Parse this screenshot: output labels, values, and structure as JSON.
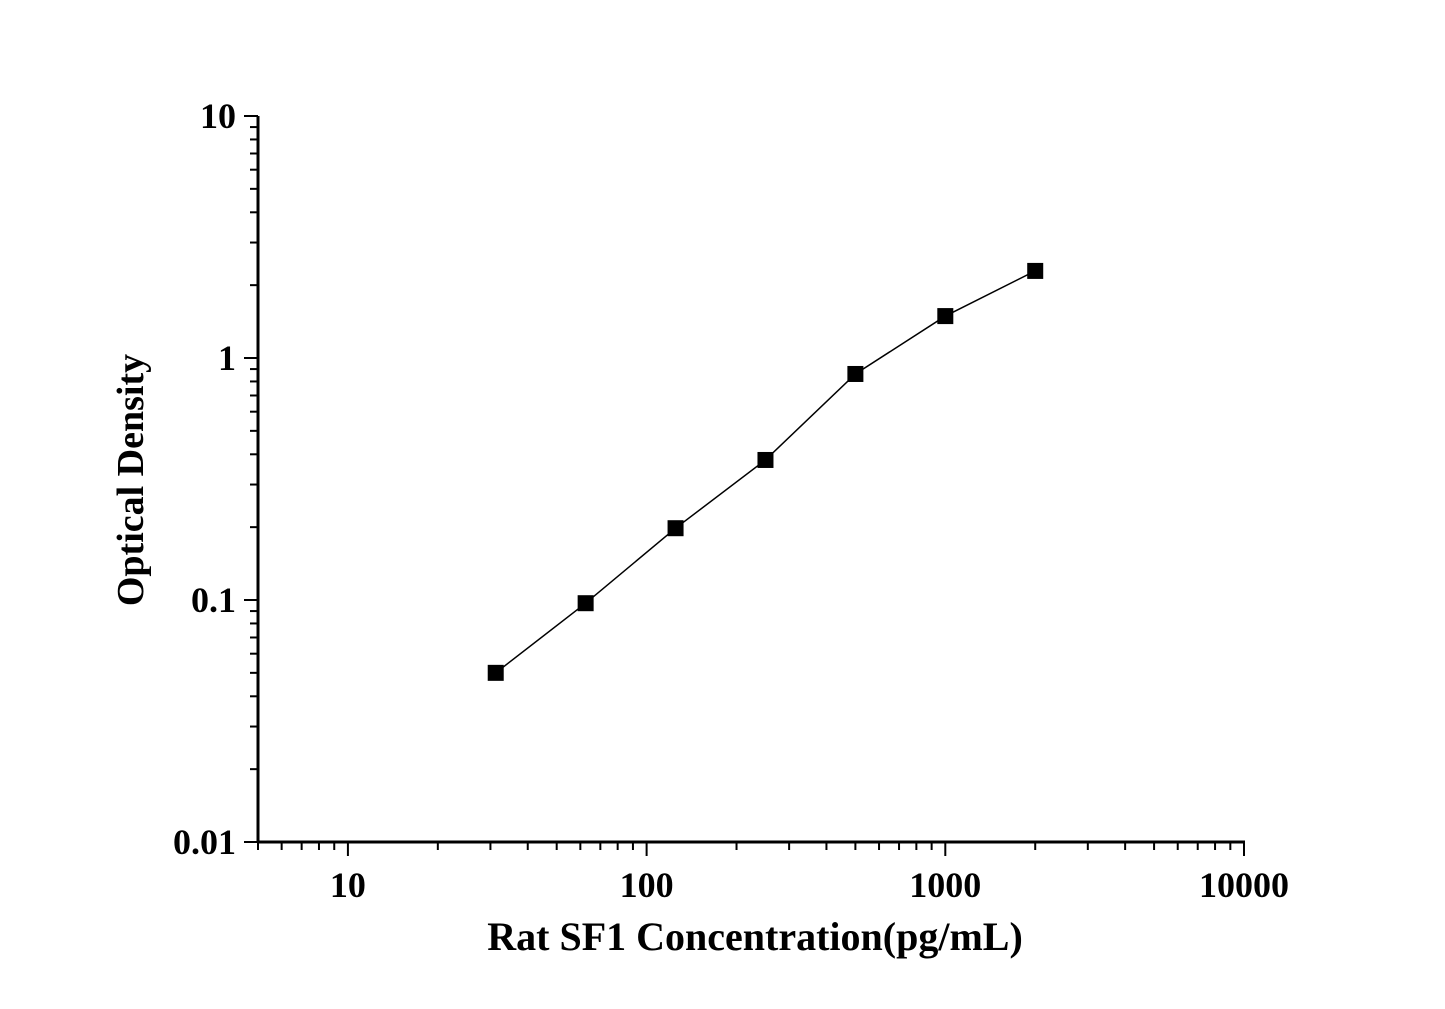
{
  "chart_data": {
    "type": "line",
    "title": "",
    "xlabel": "Rat SF1 Concentration(pg/mL)",
    "ylabel": "Optical Density",
    "xscale": "log",
    "yscale": "log",
    "xlim": [
      5,
      10000
    ],
    "ylim": [
      0.01,
      10
    ],
    "x_ticks": [
      "10",
      "100",
      "1000",
      "10000"
    ],
    "y_ticks": [
      "0.01",
      "0.1",
      "1",
      "10"
    ],
    "grid": false,
    "marker": "square",
    "color": "#000000",
    "series": [
      {
        "x": [
          31.25,
          62.5,
          125,
          250,
          500,
          1000,
          2000
        ],
        "y": [
          0.05,
          0.097,
          0.198,
          0.379,
          0.859,
          1.49,
          2.29
        ]
      }
    ]
  }
}
